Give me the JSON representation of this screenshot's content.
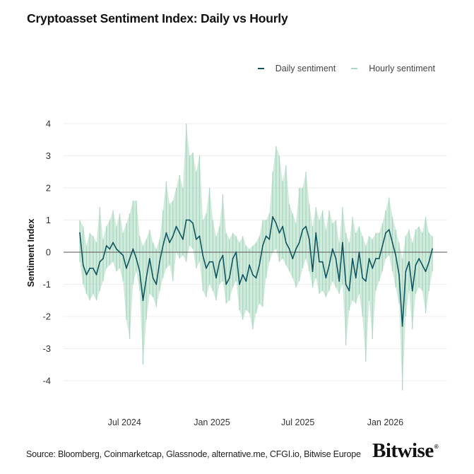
{
  "chart_data": {
    "type": "line",
    "title": "Cryptoasset Sentiment Index: Daily vs Hourly",
    "xlabel": "",
    "ylabel": "Sentiment Index",
    "ylim": [
      -4.5,
      4.2
    ],
    "yticks": [
      4,
      3,
      2,
      1,
      0,
      -1,
      -2,
      -3,
      -4
    ],
    "xticks": [
      {
        "label": "Jul 2024",
        "date": "2024-07-01"
      },
      {
        "label": "Jan 2025",
        "date": "2025-01-01"
      },
      {
        "label": "Jul 2025",
        "date": "2025-07-01"
      },
      {
        "label": "Jan 2026",
        "date": "2026-01-01"
      }
    ],
    "xlim": [
      "2024-03-29",
      "2026-04-10"
    ],
    "grid": true,
    "legend_placement": "top-right",
    "legend": [
      "Daily sentiment",
      "Hourly sentiment"
    ],
    "colors": {
      "daily": "#0f5560",
      "hourly": "#a9d8c0",
      "zero_line": "#555555",
      "grid": "#eeeeee"
    },
    "x": [
      "2024-03-29",
      "2024-04-05",
      "2024-04-12",
      "2024-04-19",
      "2024-04-26",
      "2024-05-03",
      "2024-05-10",
      "2024-05-17",
      "2024-05-24",
      "2024-05-31",
      "2024-06-07",
      "2024-06-14",
      "2024-06-21",
      "2024-06-28",
      "2024-07-05",
      "2024-07-12",
      "2024-07-19",
      "2024-07-26",
      "2024-08-02",
      "2024-08-09",
      "2024-08-16",
      "2024-08-23",
      "2024-08-30",
      "2024-09-06",
      "2024-09-13",
      "2024-09-20",
      "2024-09-27",
      "2024-10-04",
      "2024-10-11",
      "2024-10-18",
      "2024-10-25",
      "2024-11-01",
      "2024-11-08",
      "2024-11-15",
      "2024-11-22",
      "2024-11-29",
      "2024-12-06",
      "2024-12-13",
      "2024-12-20",
      "2024-12-27",
      "2025-01-03",
      "2025-01-10",
      "2025-01-17",
      "2025-01-24",
      "2025-01-31",
      "2025-02-07",
      "2025-02-14",
      "2025-02-21",
      "2025-02-28",
      "2025-03-07",
      "2025-03-14",
      "2025-03-21",
      "2025-03-28",
      "2025-04-04",
      "2025-04-11",
      "2025-04-18",
      "2025-04-25",
      "2025-05-02",
      "2025-05-09",
      "2025-05-16",
      "2025-05-23",
      "2025-05-30",
      "2025-06-06",
      "2025-06-13",
      "2025-06-20",
      "2025-06-27",
      "2025-07-04",
      "2025-07-11",
      "2025-07-18",
      "2025-07-25",
      "2025-08-01",
      "2025-08-08",
      "2025-08-15",
      "2025-08-22",
      "2025-08-29",
      "2025-09-05",
      "2025-09-12",
      "2025-09-19",
      "2025-09-26",
      "2025-10-03",
      "2025-10-10",
      "2025-10-17",
      "2025-10-24",
      "2025-10-31",
      "2025-11-07",
      "2025-11-14",
      "2025-11-21",
      "2025-11-28",
      "2025-12-05",
      "2025-12-12",
      "2025-12-19",
      "2025-12-26",
      "2026-01-02",
      "2026-01-09",
      "2026-01-16",
      "2026-01-23",
      "2026-01-30",
      "2026-02-06",
      "2026-02-13",
      "2026-02-20",
      "2026-02-27",
      "2026-03-06",
      "2026-03-13",
      "2026-03-20",
      "2026-03-27",
      "2026-04-03",
      "2026-04-10"
    ],
    "series": [
      {
        "name": "Daily sentiment",
        "values": [
          0.6,
          -0.4,
          -0.7,
          -0.5,
          -0.5,
          -0.7,
          -0.3,
          -0.2,
          0.2,
          0.1,
          0.3,
          0.1,
          0.0,
          -0.1,
          -0.5,
          -0.2,
          0.1,
          -0.2,
          -0.6,
          -1.5,
          -0.8,
          -0.2,
          -0.8,
          -1.0,
          -0.3,
          0.2,
          0.6,
          0.3,
          0.5,
          0.8,
          0.6,
          0.4,
          1.0,
          1.0,
          0.9,
          0.4,
          0.5,
          -0.1,
          -0.5,
          -0.3,
          -0.3,
          -0.8,
          -0.3,
          -0.1,
          -1.0,
          -0.8,
          -0.2,
          0.0,
          -1.0,
          -0.7,
          -0.9,
          -0.4,
          -0.7,
          -0.8,
          -0.4,
          0.2,
          0.5,
          0.4,
          1.1,
          0.9,
          0.6,
          0.8,
          0.3,
          0.1,
          -0.2,
          0.1,
          0.3,
          0.7,
          0.8,
          0.4,
          -0.6,
          0.6,
          -0.3,
          -0.3,
          -0.8,
          -0.4,
          0.1,
          -0.2,
          -0.9,
          0.3,
          -1.0,
          -1.2,
          -0.2,
          -0.8,
          0.0,
          -0.8,
          -0.9,
          -0.2,
          -0.5,
          -0.2,
          -0.2,
          0.2,
          0.6,
          0.7,
          0.3,
          -0.1,
          -0.7,
          -2.3,
          -0.6,
          -0.3,
          -1.2,
          -0.4,
          -0.2,
          -0.4,
          -0.6,
          -0.3,
          0.1
        ]
      },
      {
        "name": "Hourly sentiment",
        "low": [
          -0.3,
          -1.0,
          -1.3,
          -1.5,
          -1.3,
          -1.5,
          -1.2,
          -0.9,
          -0.5,
          -0.4,
          -0.3,
          -0.6,
          -0.5,
          -0.9,
          -2.1,
          -2.7,
          -1.0,
          -0.6,
          -1.2,
          -3.5,
          -2.1,
          -1.3,
          -1.4,
          -1.7,
          -1.2,
          -0.8,
          -0.5,
          -0.4,
          -0.9,
          0.0,
          -0.2,
          -0.1,
          -0.3,
          0.2,
          0.1,
          -0.5,
          -0.3,
          -1.2,
          -1.4,
          -1.0,
          -1.2,
          -1.5,
          -1.0,
          -0.9,
          -1.6,
          -1.5,
          -1.1,
          -0.9,
          -1.8,
          -2.1,
          -1.8,
          -1.9,
          -2.4,
          -1.9,
          -1.6,
          -1.7,
          -0.8,
          -0.3,
          0.0,
          0.1,
          -0.3,
          -0.2,
          -0.4,
          -0.6,
          -0.8,
          -1.1,
          -0.9,
          -0.5,
          -0.2,
          -0.6,
          -1.1,
          -0.8,
          -1.3,
          -1.2,
          -1.4,
          -1.2,
          -0.9,
          -1.1,
          -1.3,
          -1.0,
          -2.9,
          -1.8,
          -1.5,
          -1.6,
          -1.3,
          -2.0,
          -3.4,
          -1.5,
          -2.7,
          -1.2,
          -0.9,
          -0.6,
          -0.2,
          -0.1,
          -0.6,
          -1.1,
          -1.6,
          -4.3,
          -2.0,
          -1.2,
          -2.4,
          -1.3,
          -1.1,
          -1.2,
          -1.9,
          -1.2,
          -0.6
        ],
        "high": [
          1.0,
          0.8,
          0.2,
          0.6,
          0.5,
          0.3,
          1.4,
          0.4,
          0.8,
          1.0,
          1.3,
          0.8,
          1.2,
          0.6,
          0.9,
          1.2,
          1.6,
          1.6,
          0.5,
          0.2,
          0.4,
          0.7,
          0.3,
          0.1,
          0.4,
          1.3,
          2.2,
          1.5,
          1.6,
          2.0,
          2.4,
          2.0,
          4.0,
          3.0,
          3.1,
          2.5,
          3.0,
          1.0,
          1.2,
          2.0,
          1.0,
          0.5,
          0.8,
          1.8,
          0.6,
          0.4,
          0.6,
          0.5,
          0.3,
          0.5,
          0.2,
          0.1,
          0.2,
          0.3,
          0.5,
          1.0,
          1.0,
          1.2,
          2.5,
          3.3,
          3.0,
          2.2,
          2.7,
          1.5,
          1.2,
          0.9,
          2.0,
          2.0,
          2.5,
          1.5,
          0.8,
          1.4,
          1.0,
          1.3,
          0.7,
          1.3,
          0.9,
          1.0,
          0.3,
          1.4,
          0.6,
          0.3,
          1.1,
          0.6,
          0.8,
          0.5,
          0.2,
          0.5,
          0.4,
          0.6,
          0.6,
          0.9,
          1.3,
          1.7,
          1.1,
          0.7,
          0.3,
          -0.2,
          0.5,
          0.7,
          0.3,
          0.7,
          0.8,
          0.6,
          1.1,
          0.6,
          0.5
        ]
      }
    ]
  },
  "footer": {
    "source": "Source: Bloomberg, Coinmarketcap, Glassnode, alternative.me, CFGI.io, Bitwise Europe",
    "logo": "Bitwise"
  }
}
